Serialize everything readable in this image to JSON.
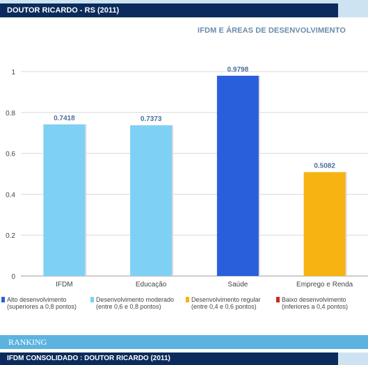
{
  "header": {
    "title": "DOUTOR RICARDO - RS (2011)"
  },
  "colors": {
    "alto": "#2a5fdc",
    "moderado": "#7fd0f5",
    "regular": "#f6b311",
    "baixo": "#cc2a22"
  },
  "chart_data": {
    "type": "bar",
    "title": "IFDM E ÁREAS DE DESENVOLVIMENTO",
    "categories": [
      "IFDM",
      "Educação",
      "Saúde",
      "Emprego e Renda"
    ],
    "values": [
      0.7418,
      0.7373,
      0.9798,
      0.5082
    ],
    "value_labels": [
      "0.7418",
      "0.7373",
      "0.9798",
      "0.5082"
    ],
    "bar_colors": [
      "#7fd0f5",
      "#7fd0f5",
      "#2a5fdc",
      "#f6b311"
    ],
    "ylim": [
      0,
      1
    ],
    "yticks": [
      0,
      0.2,
      0.4,
      0.6,
      0.8,
      1
    ],
    "ytick_labels": [
      "0",
      "0.2",
      "0.4",
      "0.6",
      "0.8",
      "1"
    ],
    "grid": true,
    "xlabel": "",
    "ylabel": ""
  },
  "legend": [
    {
      "line1": "Alto desenvolvimento",
      "line2": "(superiores a 0,8 pontos)",
      "color": "#2a5fdc"
    },
    {
      "line1": "Desenvolvimento moderado",
      "line2": "(entre 0,6 e 0,8 pontos)",
      "color": "#7fd0f5"
    },
    {
      "line1": "Desenvolvimento regular",
      "line2": "(entre 0,4 e 0,6 pontos)",
      "color": "#f6b311"
    },
    {
      "line1": "Baixo desenvolvimento",
      "line2": "(inferiores a 0,4 pontos)",
      "color": "#cc2a22"
    }
  ],
  "ranking": {
    "label": "RANKING"
  },
  "sub_header": {
    "title": "IFDM CONSOLIDADO : DOUTOR RICARDO (2011)"
  }
}
